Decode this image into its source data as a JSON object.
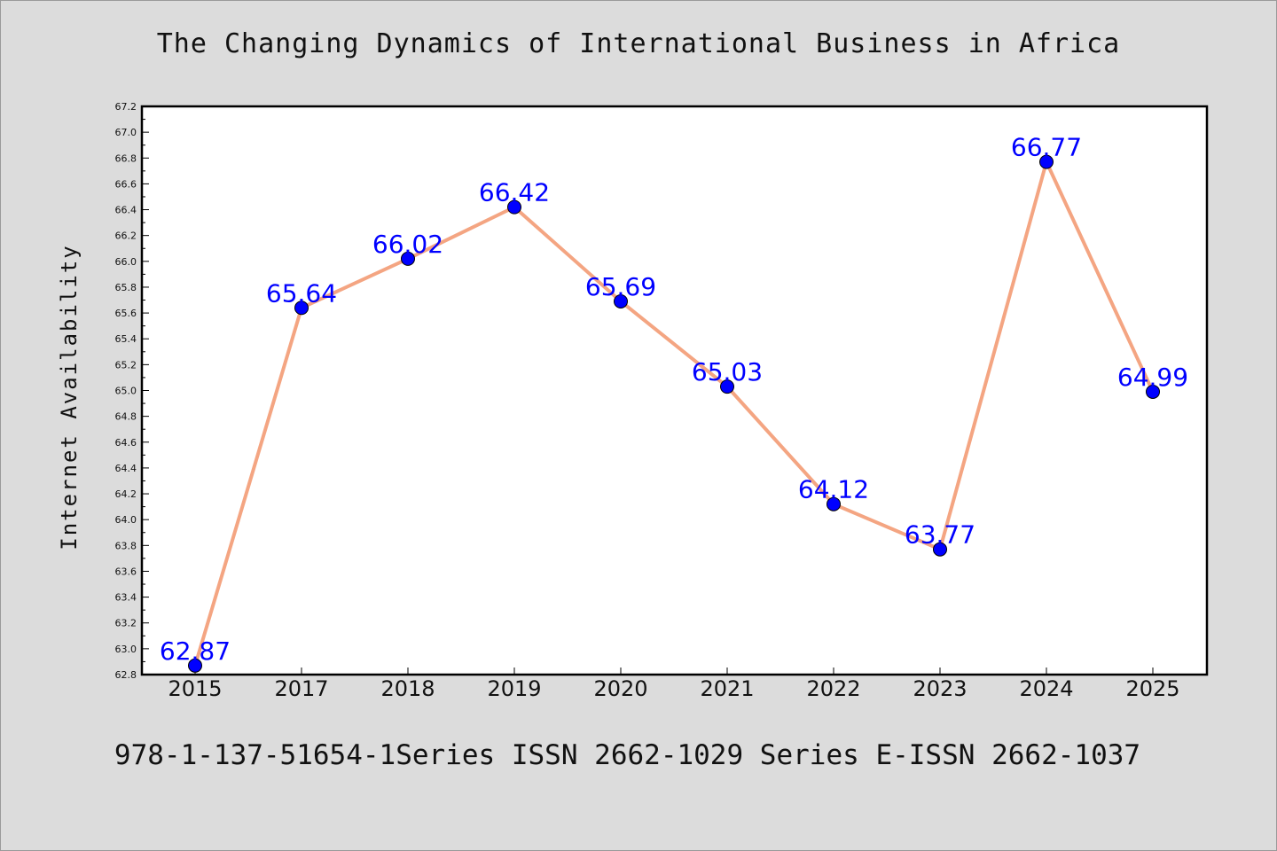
{
  "chart_data": {
    "type": "line",
    "title": "The Changing Dynamics of International Business in Africa",
    "xlabel": "",
    "ylabel": "Internet Availability",
    "categories": [
      "2015",
      "2017",
      "2018",
      "2019",
      "2020",
      "2021",
      "2022",
      "2023",
      "2024",
      "2025"
    ],
    "values": [
      62.87,
      65.64,
      66.02,
      66.42,
      65.69,
      65.03,
      64.12,
      63.77,
      66.77,
      64.99
    ],
    "data_labels": [
      "62.87",
      "65.64",
      "66.02",
      "66.42",
      "65.69",
      "65.03",
      "64.12",
      "63.77",
      "66.77",
      "64.99"
    ],
    "ylim": [
      62.8,
      67.2
    ],
    "yticks": [
      "62.8",
      "63.0",
      "63.2",
      "63.4",
      "63.6",
      "63.8",
      "64.0",
      "64.2",
      "64.4",
      "64.6",
      "64.8",
      "65.0",
      "65.2",
      "65.4",
      "65.6",
      "65.8",
      "66.0",
      "66.2",
      "66.4",
      "66.6",
      "66.8",
      "67.0",
      "67.2"
    ],
    "grid": false,
    "legend": "none",
    "colors": {
      "line": "#f4a582",
      "marker": "#0000ff",
      "data_label": "#0000ff",
      "plot_background": "#ffffff",
      "figure_background": "#dcdcdc"
    }
  },
  "footer": "978-1-137-51654-1Series ISSN 2662-1029 Series E-ISSN 2662-1037"
}
